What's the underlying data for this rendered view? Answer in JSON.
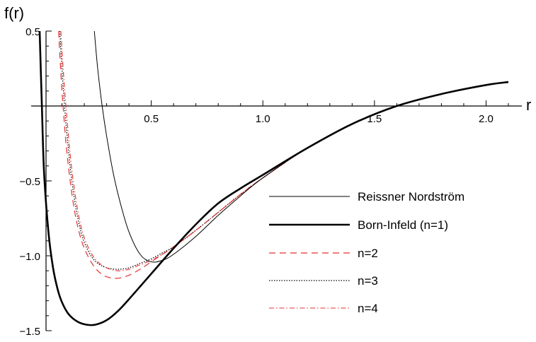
{
  "chart_data": {
    "type": "line",
    "title": "",
    "xlabel": "r",
    "ylabel": "f(r)",
    "xlim": [
      0,
      2.1
    ],
    "ylim": [
      -1.5,
      0.5
    ],
    "x_ticks": [
      0.5,
      1.0,
      1.5,
      2.0
    ],
    "x_tick_labels": [
      "0.5",
      "1.0",
      "1.5",
      "2.0"
    ],
    "y_ticks": [
      -1.5,
      -1.0,
      -0.5,
      0.5
    ],
    "y_tick_labels": [
      "-1.5",
      "-1.0",
      "-0.5",
      "0.5"
    ],
    "grid": false,
    "legend_position": "bottom-right",
    "series": [
      {
        "name": "Reissner Nordström",
        "style": "thin-solid",
        "color": "#000000",
        "x": [
          0.245,
          0.26,
          0.28,
          0.3,
          0.33,
          0.36,
          0.4,
          0.45,
          0.5,
          0.55,
          0.6,
          0.7,
          0.8,
          0.9,
          1.0,
          1.2,
          1.4,
          1.6,
          1.8,
          2.0,
          2.1
        ],
        "y": [
          0.5,
          0.25,
          0.0,
          -0.2,
          -0.45,
          -0.64,
          -0.84,
          -0.99,
          -1.04,
          -1.03,
          -0.99,
          -0.87,
          -0.73,
          -0.6,
          -0.48,
          -0.28,
          -0.12,
          0.0,
          0.08,
          0.14,
          0.16
        ]
      },
      {
        "name": "Born-Infeld (n=1)",
        "style": "thick-solid",
        "color": "#000000",
        "x": [
          0.0,
          0.01,
          0.02,
          0.04,
          0.06,
          0.08,
          0.1,
          0.13,
          0.17,
          0.21,
          0.25,
          0.3,
          0.35,
          0.4,
          0.5,
          0.6,
          0.7,
          0.8,
          0.9,
          1.0,
          1.2,
          1.4,
          1.6,
          1.8,
          2.0,
          2.1
        ],
        "y": [
          0.5,
          0.0,
          -0.45,
          -0.85,
          -1.08,
          -1.22,
          -1.31,
          -1.39,
          -1.44,
          -1.46,
          -1.46,
          -1.43,
          -1.37,
          -1.29,
          -1.12,
          -0.95,
          -0.79,
          -0.65,
          -0.55,
          -0.46,
          -0.28,
          -0.12,
          0.0,
          0.08,
          0.14,
          0.16
        ]
      },
      {
        "name": "n=2",
        "style": "dashed",
        "color": "#e53030",
        "x": [
          0.085,
          0.09,
          0.1,
          0.11,
          0.12,
          0.14,
          0.16,
          0.18,
          0.2,
          0.23,
          0.26,
          0.3,
          0.35,
          0.4,
          0.45,
          0.5,
          0.55,
          0.6,
          0.7,
          0.8,
          0.9,
          1.0,
          1.2,
          1.4,
          1.6,
          1.8,
          2.0,
          2.1
        ],
        "y": [
          0.5,
          0.35,
          0.1,
          -0.1,
          -0.28,
          -0.54,
          -0.73,
          -0.86,
          -0.95,
          -1.04,
          -1.1,
          -1.14,
          -1.15,
          -1.13,
          -1.09,
          -1.04,
          -0.99,
          -0.94,
          -0.83,
          -0.71,
          -0.59,
          -0.48,
          -0.28,
          -0.12,
          0.0,
          0.08,
          0.14,
          0.16
        ]
      },
      {
        "name": "n=3",
        "style": "dotted",
        "color": "#000000",
        "x": [
          0.09,
          0.1,
          0.11,
          0.12,
          0.14,
          0.16,
          0.18,
          0.2,
          0.23,
          0.26,
          0.3,
          0.35,
          0.4,
          0.45,
          0.5,
          0.55,
          0.6,
          0.7,
          0.8,
          0.9,
          1.0,
          1.2,
          1.4,
          1.6,
          1.8,
          2.0,
          2.1
        ],
        "y": [
          0.5,
          0.25,
          0.03,
          -0.15,
          -0.45,
          -0.66,
          -0.81,
          -0.91,
          -1.0,
          -1.05,
          -1.08,
          -1.09,
          -1.08,
          -1.05,
          -1.02,
          -0.98,
          -0.94,
          -0.83,
          -0.71,
          -0.59,
          -0.48,
          -0.28,
          -0.12,
          0.0,
          0.08,
          0.14,
          0.16
        ]
      },
      {
        "name": "n=4",
        "style": "dash-dot",
        "color": "#e53030",
        "x": [
          0.095,
          0.1,
          0.11,
          0.12,
          0.14,
          0.16,
          0.18,
          0.2,
          0.23,
          0.26,
          0.3,
          0.35,
          0.4,
          0.45,
          0.5,
          0.55,
          0.6,
          0.7,
          0.8,
          0.9,
          1.0,
          1.2,
          1.4,
          1.6,
          1.8,
          2.0,
          2.1
        ],
        "y": [
          0.5,
          0.37,
          0.15,
          -0.04,
          -0.37,
          -0.6,
          -0.77,
          -0.88,
          -0.98,
          -1.04,
          -1.08,
          -1.1,
          -1.09,
          -1.06,
          -1.03,
          -0.99,
          -0.94,
          -0.83,
          -0.71,
          -0.59,
          -0.48,
          -0.28,
          -0.12,
          0.0,
          0.08,
          0.14,
          0.16
        ]
      }
    ]
  }
}
